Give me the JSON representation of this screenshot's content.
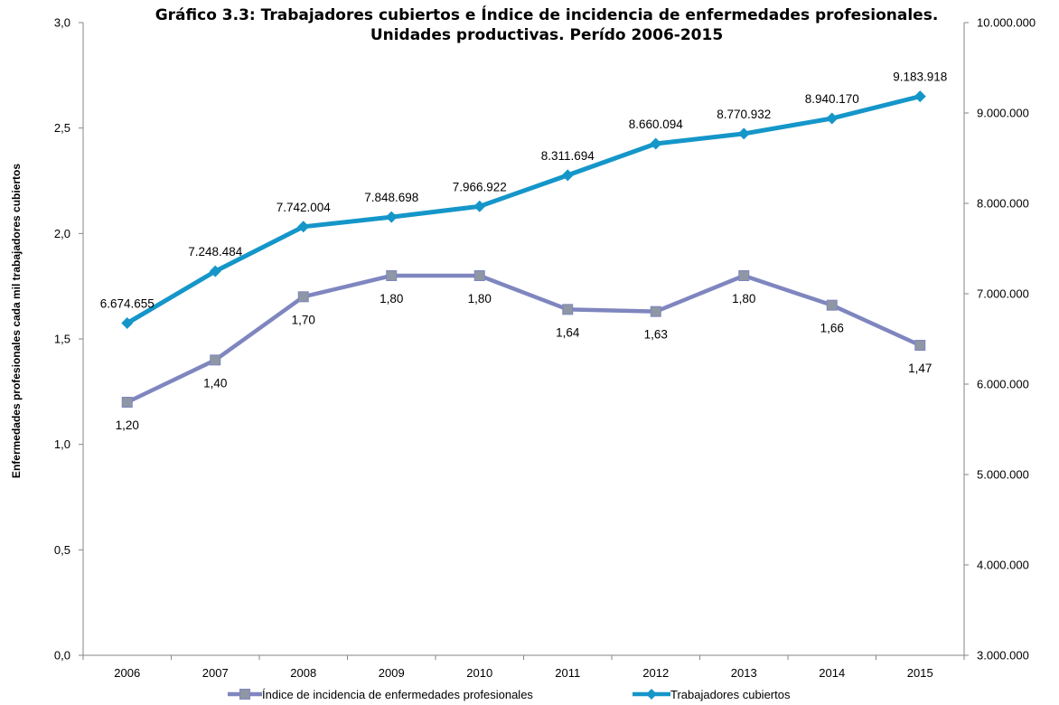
{
  "chart_data": {
    "type": "line",
    "title_line1": "Gráfico  3.3: Trabajadores cubiertos e Índice de incidencia de enfermedades profesionales.",
    "title_line2": "Unidades productivas. Perído 2006-2015",
    "ylabel_left": "Enfermedades profesionales cada mil trabajadores cubiertos",
    "ylabel_right": "",
    "xlabel": "",
    "categories": [
      "2006",
      "2007",
      "2008",
      "2009",
      "2010",
      "2011",
      "2012",
      "2013",
      "2014",
      "2015"
    ],
    "ylim_left": [
      0,
      3
    ],
    "ylim_right": [
      3000000,
      10000000
    ],
    "left_ticks": [
      "0,0",
      "0,5",
      "1,0",
      "1,5",
      "2,0",
      "2,5",
      "3,0"
    ],
    "right_ticks": [
      "3.000.000",
      "4.000.000",
      "5.000.000",
      "6.000.000",
      "7.000.000",
      "8.000.000",
      "9.000.000",
      "10.000.000"
    ],
    "grid": false,
    "legend_position": "bottom",
    "series": [
      {
        "name": "Índice de incidencia de enfermedades profesionales",
        "axis": "left",
        "marker": "square",
        "color": "#7F86BF",
        "marker_color": "#8E97A3",
        "values": [
          1.2,
          1.4,
          1.7,
          1.8,
          1.8,
          1.64,
          1.63,
          1.8,
          1.66,
          1.47
        ],
        "labels": [
          "1,20",
          "1,40",
          "1,70",
          "1,80",
          "1,80",
          "1,64",
          "1,63",
          "1,80",
          "1,66",
          "1,47"
        ]
      },
      {
        "name": "Trabajadores cubiertos",
        "axis": "right",
        "marker": "diamond",
        "color": "#1596C9",
        "marker_color": "#1596C9",
        "values": [
          6674655,
          7248484,
          7742004,
          7848698,
          7966922,
          8311694,
          8660094,
          8770932,
          8940170,
          9183918
        ],
        "labels": [
          "6.674.655",
          "7.248.484",
          "7.742.004",
          "7.848.698",
          "7.966.922",
          "8.311.694",
          "8.660.094",
          "8.770.932",
          "8.940.170",
          "9.183.918"
        ]
      }
    ]
  }
}
